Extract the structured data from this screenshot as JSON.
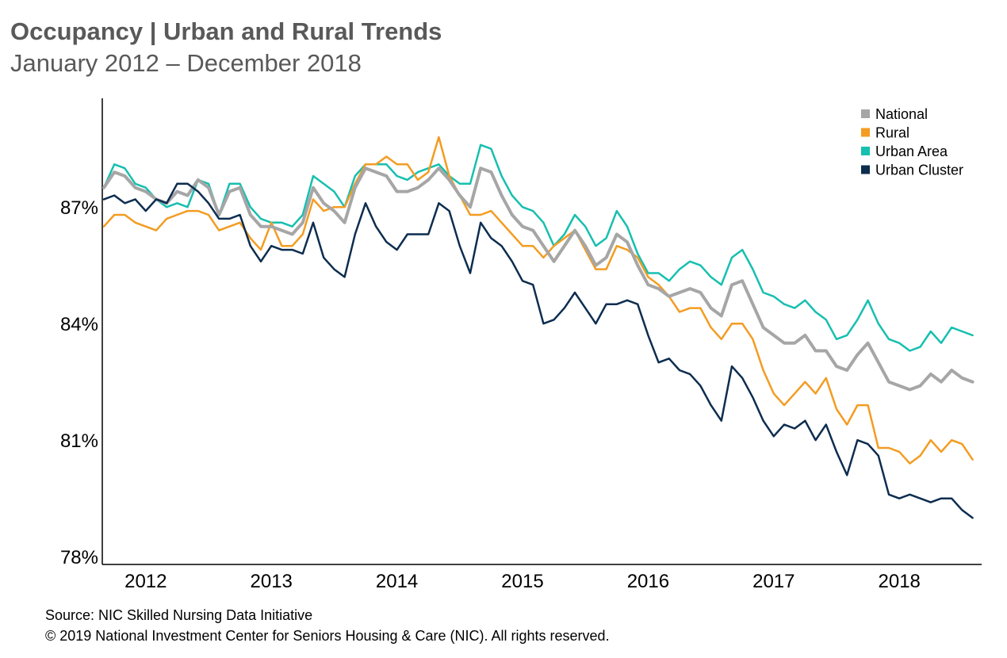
{
  "header": {
    "title": "Occupancy | Urban and Rural Trends",
    "subtitle": "January 2012 – December 2018"
  },
  "footer": {
    "source": "Source: NIC Skilled Nursing Data Initiative",
    "copyright": "© 2019 National Investment Center for Seniors Housing & Care (NIC). All rights reserved."
  },
  "chart_data": {
    "type": "line",
    "title": "Occupancy | Urban and Rural Trends",
    "subtitle": "January 2012 – December 2018",
    "xlabel": "",
    "ylabel": "",
    "x_start": "2012-01",
    "x_ticks": [
      "2012",
      "2013",
      "2014",
      "2015",
      "2016",
      "2017",
      "2018"
    ],
    "y_ticks": [
      "87%",
      "84%",
      "81%",
      "78%"
    ],
    "y_tick_values": [
      87,
      84,
      81,
      78
    ],
    "ylim": [
      77.8,
      89.8
    ],
    "grid": false,
    "legend_position": "top-right",
    "series": [
      {
        "name": "National",
        "color": "#a6a6a6",
        "values": [
          87.5,
          87.9,
          87.8,
          87.5,
          87.4,
          87.2,
          87.1,
          87.4,
          87.3,
          87.7,
          87.5,
          86.8,
          87.4,
          87.5,
          86.8,
          86.5,
          86.5,
          86.4,
          86.3,
          86.6,
          87.5,
          87.1,
          86.9,
          86.6,
          87.5,
          88.0,
          87.9,
          87.8,
          87.4,
          87.4,
          87.5,
          87.7,
          88.0,
          87.7,
          87.3,
          87.0,
          88.0,
          87.9,
          87.3,
          86.8,
          86.5,
          86.4,
          86.0,
          85.6,
          86.0,
          86.4,
          86.0,
          85.5,
          85.7,
          86.3,
          86.1,
          85.5,
          85.0,
          84.9,
          84.7,
          84.8,
          84.9,
          84.8,
          84.4,
          84.2,
          85.0,
          85.1,
          84.5,
          83.9,
          83.7,
          83.5,
          83.5,
          83.7,
          83.3,
          83.3,
          82.9,
          82.8,
          83.2,
          83.5,
          83.0,
          82.5,
          82.4,
          82.3,
          82.4,
          82.7,
          82.5,
          82.8,
          82.6,
          82.5
        ]
      },
      {
        "name": "Rural",
        "color": "#f39c22",
        "values": [
          86.5,
          86.8,
          86.8,
          86.6,
          86.5,
          86.4,
          86.7,
          86.8,
          86.9,
          86.9,
          86.8,
          86.4,
          86.5,
          86.6,
          86.2,
          85.9,
          86.6,
          86.0,
          86.0,
          86.3,
          87.2,
          86.9,
          87.0,
          87.0,
          87.6,
          88.1,
          88.1,
          88.3,
          88.1,
          88.1,
          87.7,
          87.9,
          88.8,
          87.8,
          87.3,
          86.8,
          86.8,
          86.9,
          86.6,
          86.3,
          86.0,
          86.0,
          85.7,
          86.0,
          86.2,
          86.4,
          85.9,
          85.4,
          85.4,
          86.0,
          85.9,
          85.7,
          85.2,
          85.0,
          84.7,
          84.3,
          84.4,
          84.4,
          83.9,
          83.6,
          84.0,
          84.0,
          83.6,
          82.8,
          82.2,
          81.9,
          82.2,
          82.5,
          82.2,
          82.6,
          81.8,
          81.4,
          81.9,
          81.9,
          80.8,
          80.8,
          80.7,
          80.4,
          80.6,
          81.0,
          80.7,
          81.0,
          80.9,
          80.5
        ]
      },
      {
        "name": "Urban Area",
        "color": "#17bfb0",
        "values": [
          87.5,
          88.1,
          88.0,
          87.6,
          87.5,
          87.2,
          87.0,
          87.1,
          87.0,
          87.7,
          87.6,
          86.8,
          87.6,
          87.6,
          87.0,
          86.7,
          86.6,
          86.6,
          86.5,
          86.8,
          87.8,
          87.6,
          87.4,
          87.0,
          87.8,
          88.1,
          88.1,
          88.1,
          87.8,
          87.7,
          87.9,
          88.0,
          88.1,
          87.8,
          87.6,
          87.6,
          88.6,
          88.5,
          87.8,
          87.3,
          87.0,
          86.9,
          86.6,
          86.0,
          86.3,
          86.8,
          86.5,
          86.0,
          86.2,
          86.9,
          86.5,
          85.8,
          85.3,
          85.3,
          85.1,
          85.4,
          85.6,
          85.5,
          85.2,
          85.0,
          85.7,
          85.9,
          85.4,
          84.8,
          84.7,
          84.5,
          84.4,
          84.6,
          84.3,
          84.1,
          83.6,
          83.7,
          84.1,
          84.6,
          84.0,
          83.6,
          83.5,
          83.3,
          83.4,
          83.8,
          83.5,
          83.9,
          83.8,
          83.7
        ]
      },
      {
        "name": "Urban Cluster",
        "color": "#0d2d4f",
        "values": [
          87.2,
          87.3,
          87.1,
          87.2,
          86.9,
          87.2,
          87.1,
          87.6,
          87.6,
          87.4,
          87.1,
          86.7,
          86.7,
          86.8,
          86.0,
          85.6,
          86.0,
          85.9,
          85.9,
          85.8,
          86.6,
          85.7,
          85.4,
          85.2,
          86.3,
          87.1,
          86.5,
          86.1,
          85.9,
          86.3,
          86.3,
          86.3,
          87.1,
          86.9,
          86.0,
          85.3,
          86.6,
          86.2,
          86.0,
          85.6,
          85.1,
          85.0,
          84.0,
          84.1,
          84.4,
          84.8,
          84.4,
          84.0,
          84.5,
          84.5,
          84.6,
          84.5,
          83.7,
          83.0,
          83.1,
          82.8,
          82.7,
          82.4,
          81.9,
          81.5,
          82.9,
          82.6,
          82.1,
          81.5,
          81.1,
          81.4,
          81.3,
          81.5,
          81.0,
          81.4,
          80.7,
          80.1,
          81.0,
          80.9,
          80.6,
          79.6,
          79.5,
          79.6,
          79.5,
          79.4,
          79.5,
          79.5,
          79.2,
          79.0
        ]
      }
    ]
  }
}
